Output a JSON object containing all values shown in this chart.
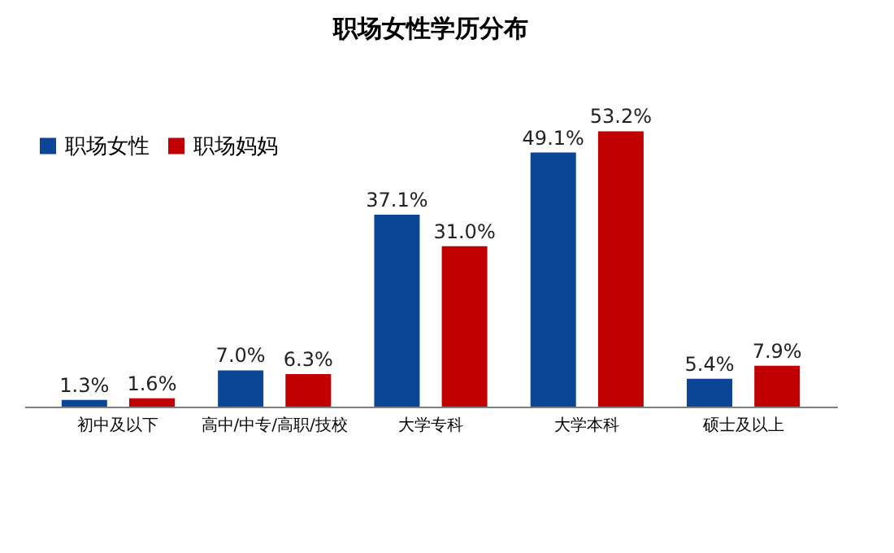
{
  "chart_data": {
    "type": "bar",
    "title": "职场女性学历分布",
    "categories": [
      "初中及以下",
      "高中/中专/高职/技校",
      "大学专科",
      "大学本科",
      "硕士及以上"
    ],
    "series": [
      {
        "name": "职场女性",
        "color": "#0b4596",
        "values": [
          1.3,
          7.0,
          37.1,
          49.1,
          5.4
        ],
        "value_labels": [
          "1.3%",
          "7.0%",
          "37.1%",
          "49.1%",
          "5.4%"
        ]
      },
      {
        "name": "职场妈妈",
        "color": "#c00000",
        "values": [
          1.6,
          6.3,
          31.0,
          53.2,
          7.9
        ],
        "value_labels": [
          "1.6%",
          "6.3%",
          "31.0%",
          "53.2%",
          "7.9%"
        ]
      }
    ],
    "legend": "top left",
    "grid": false,
    "tick_labels": "x"
  }
}
